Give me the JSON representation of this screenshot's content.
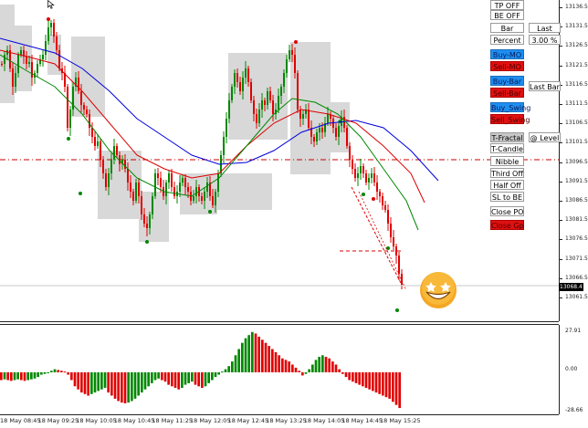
{
  "price_axis": {
    "labels": [
      "13136.5",
      "13131.5",
      "13126.5",
      "13121.5",
      "13116.5",
      "13111.5",
      "13106.5",
      "13101.5",
      "13096.5",
      "13091.5",
      "13086.5",
      "13081.5",
      "13076.5",
      "13071.5",
      "13066.5",
      "13061.5"
    ],
    "current_price": "13068.4"
  },
  "osc_axis": {
    "top": "27.91",
    "zero": "0.00",
    "bottom": "-28.66"
  },
  "time_axis": [
    "18 May 08:45",
    "18 May 09:25",
    "18 May 10:05",
    "18 May 10:45",
    "18 May 11:25",
    "18 May 12:05",
    "18 May 12:45",
    "18 May 13:25",
    "18 May 14:05",
    "18 May 14:45",
    "18 May 15:25"
  ],
  "buttons": {
    "tp_off": "TP OFF",
    "be_off": "BE OFF",
    "bar": "Bar",
    "last": "Last",
    "percent": "Percent",
    "percent_value": "3.00 %",
    "buy_mo": "Buy-MO",
    "sell_mo": "Sell-MO",
    "buy_bar": "Buy-Bar",
    "sell_bar": "Sell-Bar",
    "last_bar": "Last Bar",
    "buy_swing": "Buy_Swing",
    "sell_swing": "Sell_Swing",
    "t_fractal": "T-Fractal",
    "at_level": "@ Level",
    "t_candle": "T-Candle",
    "nibble": "Nibble",
    "third_off": "Third Off",
    "half_off": "Half Off",
    "sl_to_be": "SL to BE",
    "close_po": "Close PO",
    "close_gp": "Close Gp"
  },
  "colors": {
    "bull": "#008800",
    "bear": "#e00000",
    "ma_blue": "#0000dd",
    "ma_red": "#dd0000",
    "ma_green": "#008800",
    "level": "#cc0000",
    "box": "#d8d8d8",
    "blue_btn": "#1e8ef0",
    "red_btn": "#e01010"
  },
  "icons": [
    "arrow-cursor-icon",
    "star-eyes-emoji-icon"
  ]
}
